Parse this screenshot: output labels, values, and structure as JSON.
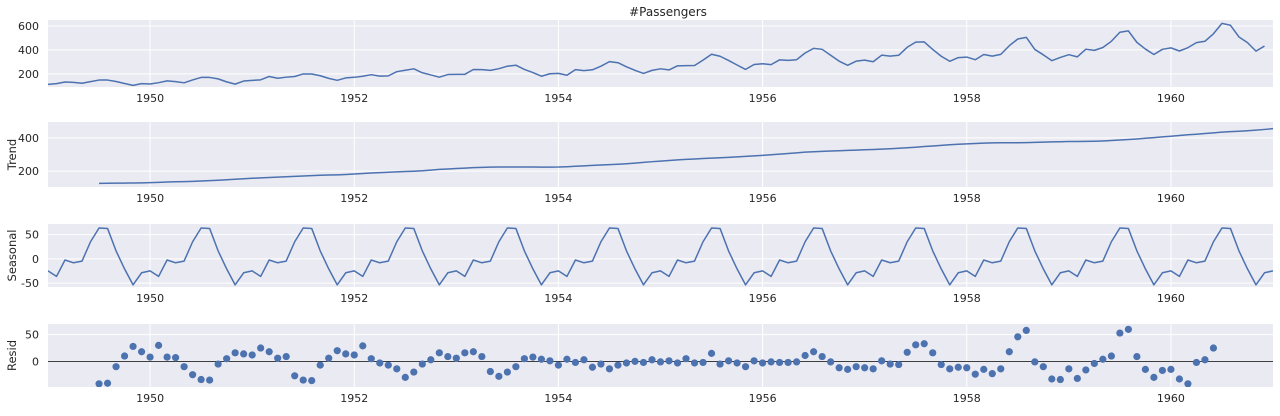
{
  "figure_title": "#Passengers",
  "colors": {
    "panel_bg": "#eaeaf2",
    "grid": "#ffffff",
    "series": "#4c72b0",
    "zero_line": "#000000"
  },
  "chart_data": [
    {
      "type": "line",
      "name": "observed",
      "title": "#Passengers",
      "ylabel": "",
      "xlim": [
        1949.0,
        1961.0
      ],
      "ylim": [
        90,
        650
      ],
      "x_start": 1949.0,
      "x_step": 0.0833333,
      "xticks": [
        1950,
        1952,
        1954,
        1956,
        1958,
        1960
      ],
      "yticks": [
        200,
        400,
        600
      ],
      "grid": true,
      "values": [
        112,
        118,
        132,
        129,
        121,
        135,
        148,
        148,
        136,
        119,
        104,
        118,
        115,
        126,
        141,
        135,
        125,
        149,
        170,
        170,
        158,
        133,
        114,
        140,
        145,
        150,
        178,
        163,
        172,
        178,
        199,
        199,
        184,
        162,
        146,
        166,
        171,
        180,
        193,
        181,
        183,
        218,
        230,
        242,
        209,
        191,
        172,
        194,
        196,
        196,
        236,
        235,
        229,
        243,
        264,
        272,
        237,
        211,
        180,
        201,
        204,
        188,
        235,
        227,
        234,
        264,
        302,
        293,
        259,
        229,
        203,
        229,
        242,
        233,
        267,
        269,
        270,
        315,
        364,
        347,
        312,
        274,
        237,
        278,
        284,
        277,
        317,
        313,
        318,
        374,
        413,
        405,
        355,
        306,
        271,
        306,
        315,
        301,
        356,
        348,
        355,
        422,
        465,
        467,
        404,
        347,
        305,
        336,
        340,
        318,
        362,
        348,
        363,
        435,
        491,
        505,
        404,
        359,
        310,
        337,
        360,
        342,
        406,
        396,
        420,
        472,
        548,
        559,
        463,
        407,
        362,
        405,
        417,
        391,
        419,
        461,
        472,
        535,
        622,
        606,
        508,
        461,
        390,
        432
      ]
    },
    {
      "type": "line",
      "name": "trend",
      "title": "",
      "ylabel": "Trend",
      "xlim": [
        1949.0,
        1961.0
      ],
      "ylim": [
        105,
        495
      ],
      "x_start": 1949.5,
      "x_step": 0.0833333,
      "xticks": [
        1950,
        1952,
        1954,
        1956,
        1958,
        1960
      ],
      "yticks": [
        200,
        400
      ],
      "grid": true,
      "values": [
        126.79,
        127.25,
        127.96,
        128.58,
        129.0,
        129.75,
        131.25,
        133.08,
        134.92,
        136.42,
        137.42,
        138.75,
        140.92,
        143.17,
        145.71,
        148.42,
        151.54,
        154.71,
        157.12,
        159.54,
        161.83,
        164.12,
        166.67,
        169.08,
        171.25,
        173.58,
        175.46,
        176.83,
        178.04,
        180.17,
        183.12,
        186.21,
        189.04,
        191.29,
        193.58,
        195.83,
        198.04,
        199.75,
        202.21,
        206.25,
        210.42,
        213.38,
        215.83,
        218.5,
        220.92,
        222.92,
        224.08,
        224.71,
        225.33,
        225.33,
        224.96,
        224.92,
        224.0,
        224.0,
        224.71,
        226.67,
        229.29,
        232.0,
        234.5,
        236.88,
        239.25,
        241.5,
        244.5,
        248.33,
        252.5,
        256.83,
        260.5,
        264.0,
        267.5,
        270.42,
        273.0,
        275.92,
        278.54,
        280.58,
        282.71,
        285.58,
        288.42,
        291.5,
        294.79,
        298.21,
        302.0,
        305.83,
        309.83,
        313.92,
        316.71,
        319.08,
        321.21,
        322.75,
        324.5,
        326.5,
        328.25,
        330.0,
        332.0,
        334.5,
        337.54,
        340.54,
        343.88,
        347.62,
        351.33,
        354.67,
        358.12,
        361.17,
        363.88,
        366.17,
        368.29,
        369.54,
        370.21,
        370.38,
        370.54,
        371.46,
        372.83,
        374.42,
        375.54,
        376.83,
        377.79,
        378.33,
        378.71,
        379.5,
        381.25,
        383.79,
        386.79,
        390.0,
        393.29,
        397.25,
        401.5,
        405.71,
        409.88,
        414.29,
        418.17,
        421.75,
        425.67,
        429.83,
        434.42,
        437.58,
        439.83,
        442.42,
        446.08,
        450.38,
        455.08,
        459.25,
        462.71,
        466.29,
        469.71,
        472.67,
        475.58
      ]
    },
    {
      "type": "line",
      "name": "seasonal",
      "title": "",
      "ylabel": "Seasonal",
      "xlim": [
        1949.0,
        1961.0
      ],
      "ylim": [
        -58,
        72
      ],
      "x_start": 1949.0,
      "x_step": 0.0833333,
      "xticks": [
        1950,
        1952,
        1954,
        1956,
        1958,
        1960
      ],
      "yticks": [
        -50,
        0,
        50
      ],
      "grid": true,
      "period": 12,
      "pattern": [
        -24.75,
        -36.19,
        -2.24,
        -8.04,
        -4.51,
        35.4,
        63.83,
        62.82,
        16.52,
        -20.64,
        -53.59,
        -28.62
      ]
    },
    {
      "type": "scatter",
      "name": "resid",
      "title": "",
      "ylabel": "Resid",
      "xlim": [
        1949.0,
        1961.0
      ],
      "ylim": [
        -48,
        70
      ],
      "x_start": 1949.5,
      "x_step": 0.0833333,
      "xticks": [
        1950,
        1952,
        1954,
        1956,
        1958,
        1960
      ],
      "yticks": [
        0,
        50
      ],
      "grid": true,
      "zero_line": true,
      "values": [
        -42,
        -41,
        -10,
        10,
        28,
        18,
        8,
        30,
        8,
        7,
        -10,
        -25,
        -34,
        -35,
        -5,
        5,
        16,
        14,
        12,
        25,
        18,
        6,
        9,
        -27,
        -35,
        -36,
        -7,
        6,
        20,
        14,
        12,
        29,
        5,
        -3,
        -7,
        -14,
        -30,
        -20,
        -5,
        3,
        16,
        9,
        6,
        16,
        18,
        9,
        -19,
        -28,
        -20,
        -10,
        5,
        8,
        4,
        1,
        -7,
        4,
        -2,
        3,
        -11,
        -5,
        -14,
        -7,
        -3,
        0,
        -2,
        3,
        -1,
        1,
        -3,
        5,
        -3,
        -2,
        15,
        -5,
        1,
        -3,
        -10,
        1,
        -3,
        -1,
        -2,
        -2,
        -1,
        11,
        18,
        9,
        -1,
        -12,
        -15,
        -10,
        -12,
        -14,
        1,
        -5,
        -6,
        17,
        31,
        33,
        16,
        -6,
        -14,
        -11,
        -12,
        -24,
        -15,
        -23,
        -14,
        18,
        46,
        58,
        -1,
        -10,
        -33,
        -34,
        -14,
        -32,
        -16,
        -4,
        4,
        10,
        53,
        60,
        9,
        -15,
        -30,
        -17,
        -15,
        -33,
        -42,
        -2,
        3,
        25
      ]
    }
  ]
}
